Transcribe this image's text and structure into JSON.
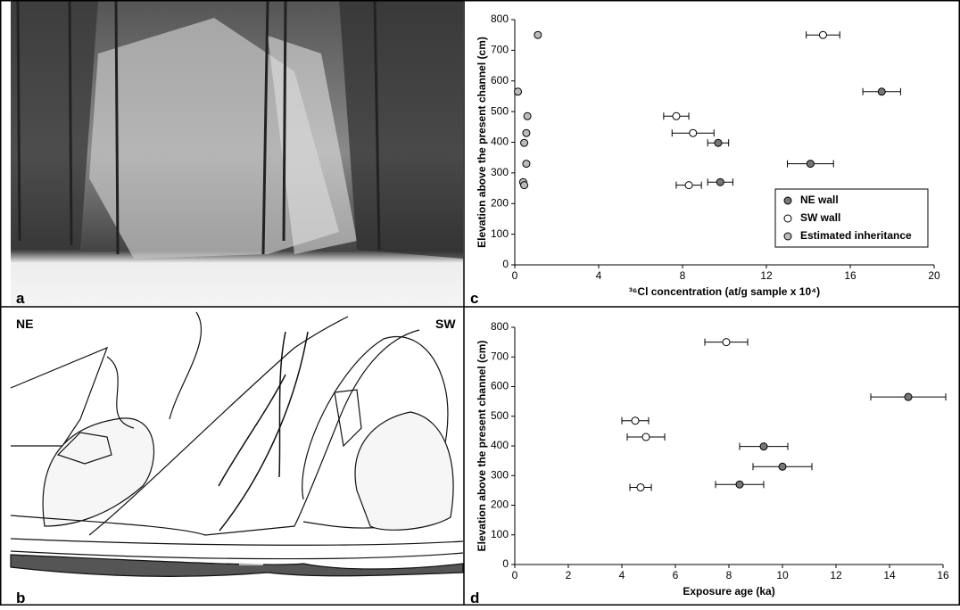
{
  "panel_labels": [
    "a",
    "b",
    "c",
    "d"
  ],
  "sketch": {
    "left_label": "NE",
    "right_label": "SW"
  },
  "chart_data": [
    {
      "type": "scatter",
      "x_label": "³⁶Cl concentration (at/g sample x 10⁴)",
      "y_label": "Elevation above the present channel (cm)",
      "xlim": [
        0,
        20
      ],
      "xticks": [
        0,
        4,
        8,
        12,
        16,
        20
      ],
      "ylim": [
        0,
        800
      ],
      "yticks": [
        0,
        100,
        200,
        300,
        400,
        500,
        600,
        700,
        800
      ],
      "legend": "lower right",
      "series": [
        {
          "name": "NE wall",
          "color": "#777777",
          "x": [
            17.5,
            14.1,
            9.7,
            9.8
          ],
          "y": [
            565,
            330,
            398,
            270
          ],
          "xerr": [
            0.9,
            1.1,
            0.5,
            0.6
          ]
        },
        {
          "name": "SW wall",
          "color": "#ffffff",
          "x": [
            14.7,
            7.7,
            8.5,
            8.3
          ],
          "y": [
            750,
            485,
            430,
            260
          ],
          "xerr": [
            0.8,
            0.6,
            1.0,
            0.6
          ]
        },
        {
          "name": "Estimated inheritance",
          "color": "#bbbbbb",
          "x": [
            1.1,
            0.15,
            0.6,
            0.55,
            0.45,
            0.55,
            0.4,
            0.45
          ],
          "y": [
            750,
            565,
            485,
            430,
            398,
            330,
            270,
            260
          ]
        }
      ]
    },
    {
      "type": "scatter",
      "x_label": "Exposure age (ka)",
      "y_label": "Elevation above the present channel (cm)",
      "xlim": [
        0,
        16
      ],
      "xticks": [
        0,
        2,
        4,
        6,
        8,
        10,
        12,
        14,
        16
      ],
      "ylim": [
        0,
        800
      ],
      "yticks": [
        0,
        100,
        200,
        300,
        400,
        500,
        600,
        700,
        800
      ],
      "series": [
        {
          "name": "NE wall",
          "color": "#777777",
          "x": [
            14.7,
            9.3,
            10.0,
            8.4
          ],
          "y": [
            565,
            398,
            330,
            270
          ],
          "xerr": [
            1.4,
            0.9,
            1.1,
            0.9
          ]
        },
        {
          "name": "SW wall",
          "color": "#ffffff",
          "x": [
            7.9,
            4.5,
            4.9,
            4.7
          ],
          "y": [
            750,
            485,
            430,
            260
          ],
          "xerr": [
            0.8,
            0.5,
            0.7,
            0.4
          ]
        }
      ]
    }
  ]
}
